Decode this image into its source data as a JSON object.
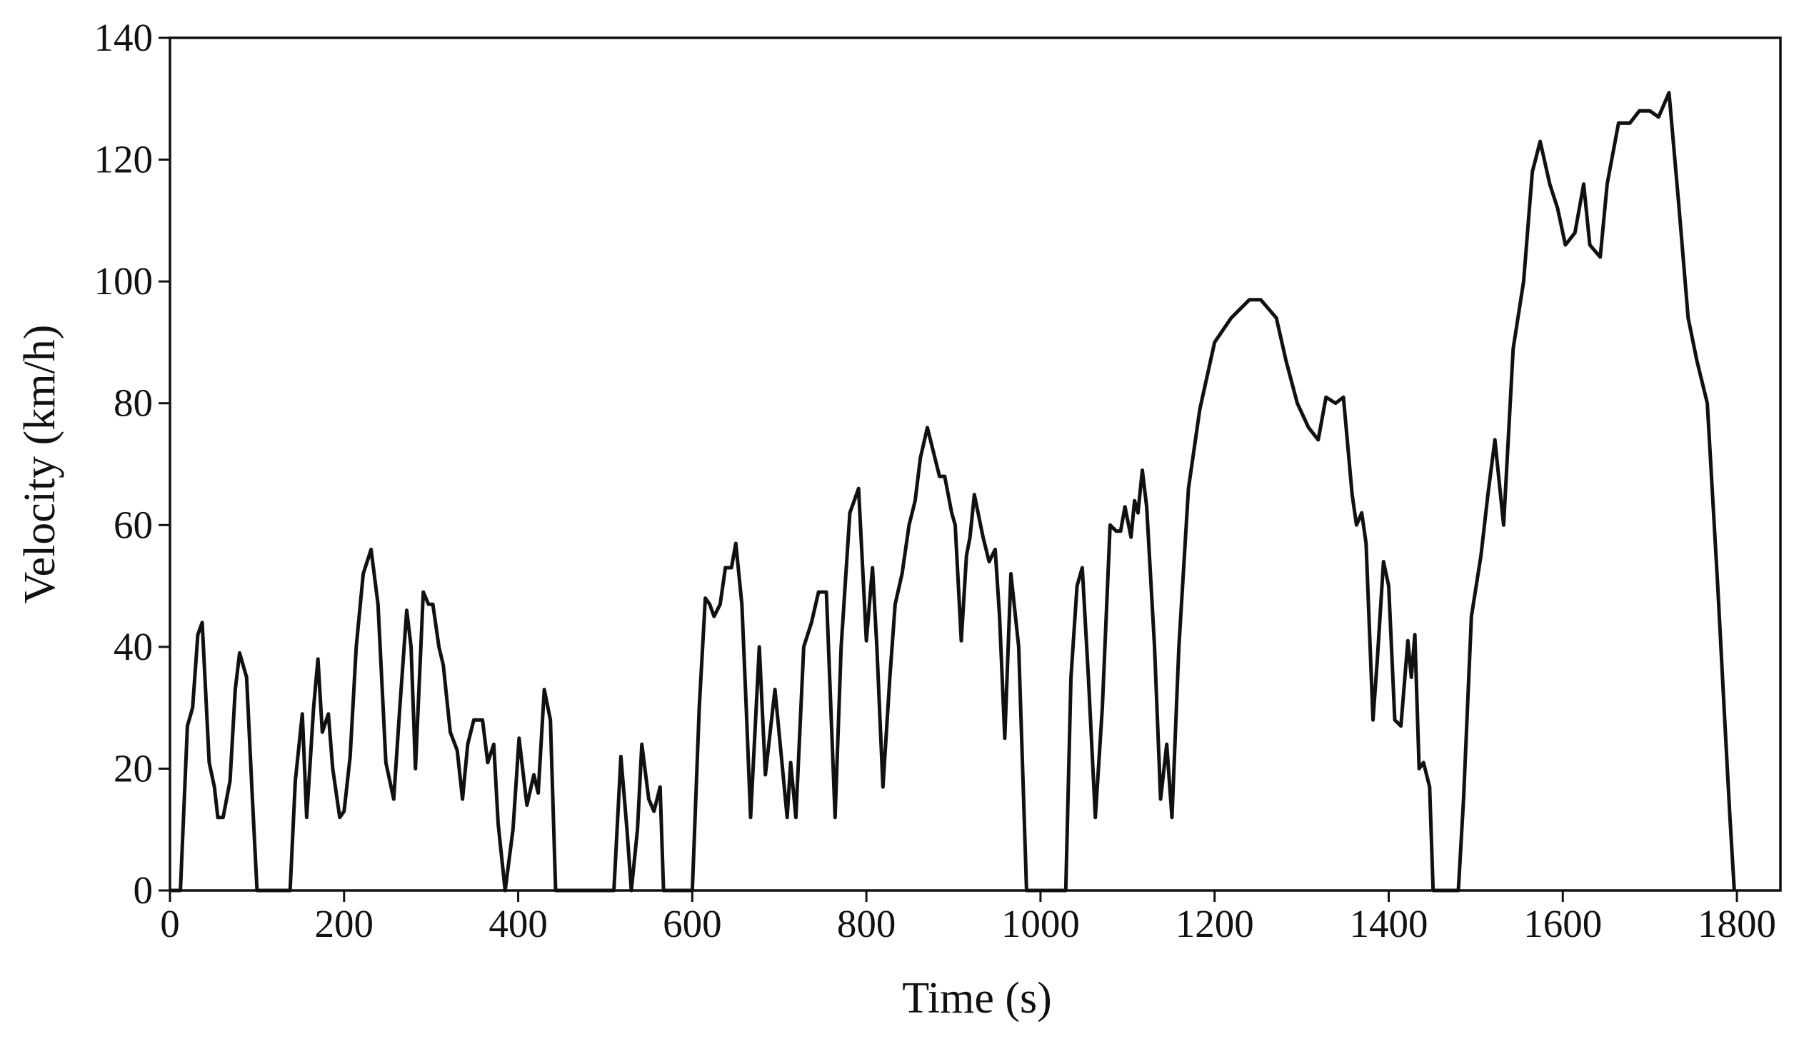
{
  "chart_data": {
    "type": "line",
    "xlabel": "Time (s)",
    "ylabel": "Velocity (km/h)",
    "xlim": [
      0,
      1850
    ],
    "ylim": [
      0,
      140
    ],
    "xticks": [
      0,
      200,
      400,
      600,
      800,
      1000,
      1200,
      1400,
      1600,
      1800
    ],
    "yticks": [
      0,
      20,
      40,
      60,
      80,
      100,
      120,
      140
    ],
    "x": [
      0,
      12,
      20,
      26,
      32,
      37,
      45,
      51,
      55,
      61,
      69,
      75,
      80,
      88,
      94,
      100,
      138,
      144,
      152,
      157,
      165,
      170,
      175,
      182,
      187,
      195,
      200,
      207,
      214,
      222,
      231,
      239,
      248,
      257,
      264,
      272,
      277,
      282,
      291,
      297,
      302,
      309,
      314,
      322,
      330,
      336,
      342,
      349,
      359,
      365,
      372,
      377,
      385,
      394,
      401,
      410,
      418,
      423,
      430,
      437,
      443,
      510,
      518,
      525,
      530,
      537,
      542,
      550,
      556,
      563,
      567,
      600,
      608,
      615,
      620,
      625,
      632,
      638,
      645,
      650,
      657,
      662,
      667,
      677,
      684,
      695,
      703,
      709,
      713,
      719,
      728,
      737,
      745,
      754,
      764,
      771,
      781,
      791,
      800,
      807,
      812,
      819,
      827,
      833,
      841,
      849,
      856,
      862,
      870,
      877,
      884,
      890,
      898,
      902,
      909,
      915,
      919,
      924,
      934,
      941,
      948,
      953,
      959,
      966,
      975,
      984,
      1029,
      1035,
      1042,
      1048,
      1055,
      1063,
      1071,
      1080,
      1087,
      1092,
      1097,
      1104,
      1108,
      1112,
      1117,
      1122,
      1131,
      1138,
      1145,
      1151,
      1159,
      1170,
      1183,
      1200,
      1219,
      1240,
      1253,
      1271,
      1282,
      1295,
      1308,
      1319,
      1328,
      1339,
      1348,
      1358,
      1363,
      1369,
      1374,
      1382,
      1387,
      1394,
      1400,
      1407,
      1414,
      1422,
      1426,
      1430,
      1435,
      1440,
      1447,
      1451,
      1480,
      1486,
      1495,
      1506,
      1514,
      1522,
      1532,
      1543,
      1555,
      1565,
      1574,
      1585,
      1594,
      1603,
      1614,
      1624,
      1631,
      1643,
      1651,
      1664,
      1677,
      1688,
      1700,
      1710,
      1722,
      1733,
      1744,
      1754,
      1766,
      1778,
      1786,
      1792,
      1797
    ],
    "series": [
      {
        "color": "#111111",
        "values": [
          0,
          0,
          27,
          30,
          42,
          44,
          21,
          17,
          12,
          12,
          18,
          33,
          39,
          35,
          17,
          0,
          0,
          18,
          29,
          12,
          30,
          38,
          26,
          29,
          20,
          12,
          13,
          22,
          40,
          52,
          56,
          47,
          21,
          15,
          30,
          46,
          40,
          20,
          49,
          47,
          47,
          40,
          37,
          26,
          23,
          15,
          24,
          28,
          28,
          21,
          24,
          11,
          0,
          10,
          25,
          14,
          19,
          16,
          33,
          28,
          0,
          0,
          22,
          10,
          0,
          10,
          24,
          15,
          13,
          17,
          0,
          0,
          30,
          48,
          47,
          45,
          47,
          53,
          53,
          57,
          47,
          30,
          12,
          40,
          19,
          33,
          21,
          12,
          21,
          12,
          40,
          44,
          49,
          49,
          12,
          40,
          62,
          66,
          41,
          53,
          40,
          17,
          35,
          47,
          52,
          60,
          64,
          71,
          76,
          72,
          68,
          68,
          62,
          60,
          41,
          55,
          58,
          65,
          58,
          54,
          56,
          45,
          25,
          52,
          40,
          0,
          0,
          35,
          50,
          53,
          35,
          12,
          30,
          60,
          59,
          59,
          63,
          58,
          64,
          62,
          69,
          63,
          40,
          15,
          24,
          12,
          40,
          66,
          79,
          90,
          94,
          97,
          97,
          94,
          87,
          80,
          76,
          74,
          81,
          80,
          81,
          65,
          60,
          62,
          57,
          28,
          38,
          54,
          50,
          28,
          27,
          41,
          35,
          42,
          20,
          21,
          17,
          0,
          0,
          15,
          45,
          55,
          65,
          74,
          60,
          89,
          100,
          118,
          123,
          116,
          112,
          106,
          108,
          116,
          106,
          104,
          116,
          126,
          126,
          128,
          128,
          127,
          131,
          113,
          94,
          87,
          80,
          50,
          28,
          12,
          0
        ]
      }
    ]
  }
}
